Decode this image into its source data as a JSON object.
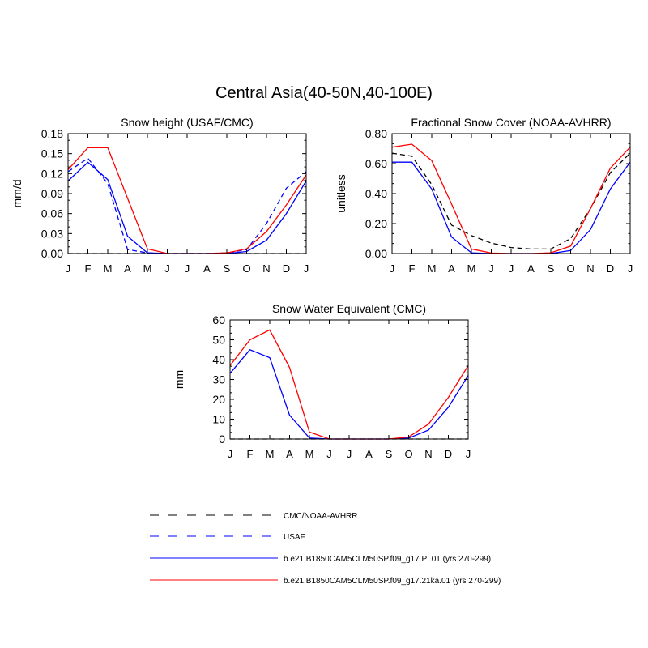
{
  "title": "Central Asia(40-50N,40-100E)",
  "months": [
    "J",
    "F",
    "M",
    "A",
    "M",
    "J",
    "J",
    "A",
    "S",
    "O",
    "N",
    "D",
    "J"
  ],
  "colors": {
    "cmc_noaa": "#000000",
    "usaf": "#0000ff",
    "pi01": "#0000ff",
    "ka01": "#ff0000"
  },
  "legend": [
    {
      "key": "cmc_noaa",
      "label": "CMC/NOAA-AVHRR",
      "style": "dashed"
    },
    {
      "key": "usaf",
      "label": "USAF",
      "style": "dashed"
    },
    {
      "key": "pi01",
      "label": "b.e21.B1850CAM5CLM50SP.f09_g17.PI.01 (yrs 270-299)",
      "style": "solid"
    },
    {
      "key": "ka01",
      "label": "b.e21.B1850CAM5CLM50SP.f09_g17.21ka.01 (yrs 270-299)",
      "style": "solid"
    }
  ],
  "chart_data": [
    {
      "id": "snow-height",
      "type": "line",
      "title": "Snow height (USAF/CMC)",
      "ylabel": "mm/d",
      "ylim": [
        0,
        0.18
      ],
      "yticks": [
        "0.00",
        "0.03",
        "0.06",
        "0.09",
        "0.12",
        "0.15",
        "0.18"
      ],
      "series": [
        {
          "key": "cmc_noaa",
          "values": [
            0,
            0,
            0,
            0,
            0,
            0,
            0,
            0,
            0,
            0,
            0,
            0,
            0
          ]
        },
        {
          "key": "usaf",
          "values": [
            0.123,
            0.143,
            0.105,
            0.006,
            0.001,
            0,
            0,
            0,
            0.001,
            0.006,
            0.045,
            0.098,
            0.123
          ]
        },
        {
          "key": "pi01",
          "values": [
            0.109,
            0.137,
            0.111,
            0.026,
            0.001,
            0,
            0,
            0,
            0,
            0.003,
            0.02,
            0.06,
            0.109
          ]
        },
        {
          "key": "ka01",
          "values": [
            0.126,
            0.159,
            0.159,
            0.083,
            0.007,
            0,
            0,
            0,
            0.001,
            0.007,
            0.033,
            0.073,
            0.118
          ]
        }
      ]
    },
    {
      "id": "snow-cover",
      "type": "line",
      "title": "Fractional Snow Cover (NOAA-AVHRR)",
      "ylabel": "unitless",
      "ylim": [
        0,
        0.8
      ],
      "yticks": [
        "0.00",
        "0.20",
        "0.40",
        "0.60",
        "0.80"
      ],
      "series": [
        {
          "key": "cmc_noaa",
          "values": [
            0.67,
            0.65,
            0.46,
            0.19,
            0.12,
            0.07,
            0.04,
            0.03,
            0.03,
            0.1,
            0.3,
            0.54,
            0.67
          ]
        },
        {
          "key": "pi01",
          "values": [
            0.61,
            0.61,
            0.43,
            0.11,
            0.005,
            0,
            0,
            0,
            0,
            0.02,
            0.16,
            0.43,
            0.61
          ]
        },
        {
          "key": "ka01",
          "values": [
            0.71,
            0.73,
            0.62,
            0.33,
            0.03,
            0.003,
            0,
            0,
            0.005,
            0.05,
            0.3,
            0.57,
            0.71
          ]
        }
      ]
    },
    {
      "id": "swe",
      "type": "line",
      "title": "Snow Water Equivalent (CMC)",
      "ylabel": "mm",
      "ylim": [
        0,
        60
      ],
      "yticks": [
        "0",
        "10",
        "20",
        "30",
        "40",
        "50",
        "60"
      ],
      "series": [
        {
          "key": "cmc_noaa",
          "values": [
            0,
            0,
            0,
            0,
            0,
            0,
            0,
            0,
            0,
            0,
            0,
            0,
            0
          ]
        },
        {
          "key": "pi01",
          "values": [
            33,
            45,
            41,
            12,
            0.5,
            0,
            0,
            0,
            0,
            0.5,
            4.5,
            16,
            32
          ]
        },
        {
          "key": "ka01",
          "values": [
            37,
            50,
            55,
            36,
            3.5,
            0,
            0,
            0,
            0,
            1,
            7.5,
            21,
            37
          ]
        }
      ]
    }
  ]
}
